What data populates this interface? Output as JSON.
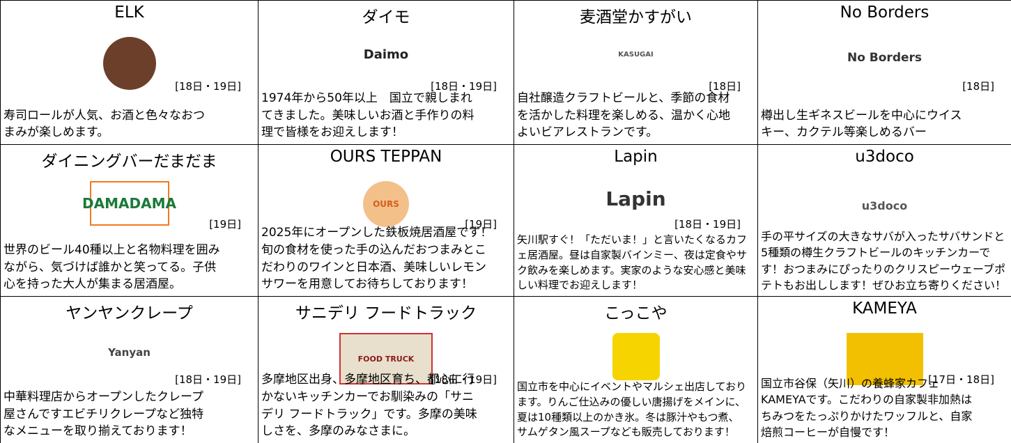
{
  "shops": [
    {
      "name": "ELK",
      "date": "[18日・19日]",
      "description": [
        "寿司ロールが人気、お酒と色々なおつ",
        "まみが楽しめます。"
      ]
    },
    {
      "name": "ダイモ",
      "date": "[18日・19日]",
      "logo_text": "Daimo",
      "description": [
        "1974年から50年以上　国立で親しまれ",
        "てきました。美味しいお酒と手作りの料",
        "理で皆様をお迎えします！"
      ]
    },
    {
      "name": "麦酒堂かすがい",
      "date": "[18日]",
      "logo_text": "KASUGAI",
      "description": [
        "自社醸造クラフトビールと、季節の食材",
        "を活かした料理を楽しめる、温かく心地",
        "よいビアレストランです。"
      ]
    },
    {
      "name": "No Borders",
      "date": "[18日]",
      "logo_text": "No Borders",
      "description": [
        "樽出し生ギネスビールを中心にウイス",
        "キー、カクテル等楽しめるバー"
      ]
    },
    {
      "name": "ダイニングバーだまだま",
      "date": "[19日]",
      "logo_text": "DAMADAMA",
      "description": [
        "世界のビール40種以上と名物料理を囲み",
        "ながら、気づけば誰かと笑ってる。子供",
        "心を持った大人が集まる居酒屋。"
      ]
    },
    {
      "name": "OURS TEPPAN",
      "date": "[19日]",
      "logo_text": "OURS",
      "description": [
        "2025年にオープンした鉄板焼居酒屋です！",
        "旬の食材を使った手の込んだおつまみとこ",
        "だわりのワインと日本酒、美味しいレモン",
        "サワーを用意してお待ちしております！"
      ]
    },
    {
      "name": "Lapin",
      "date": "[18日・19日]",
      "logo_text": "Lapin",
      "description": [
        "矢川駅すぐ！「ただいま！」と言いたくなるカフ",
        "ェ居酒屋。昼は自家製バインミー、夜は定食やサ",
        "ク飲みを楽しめます。実家のような安心感と美味",
        "しい料理でお迎えします！"
      ]
    },
    {
      "name": "u3doco",
      "logo_text": "u3doco",
      "description": [
        "手の平サイズの大きなサバが入ったサバサンドと",
        "5種類の樽生クラフトビールのキッチンカーで",
        "す！おつまみにぴったりのクリスピーウェーブポ",
        "テトもお出しします！ぜひお立ち寄りください！"
      ]
    },
    {
      "name": "ヤンヤンクレープ",
      "date": "[18日・19日]",
      "logo_text": "Yanyan",
      "description": [
        "中華料理店からオープンしたクレープ",
        "屋さんですエビチリクレープなど独特",
        "なメニューを取り揃えております！"
      ]
    },
    {
      "name": "サニデリ フードトラック",
      "date": "[18日・19日]",
      "logo_text": "FOOD TRUCK",
      "description": [
        "多摩地区出身、多摩地区育ち、都心に行",
        "かないキッチンカーでお馴染みの「サニ",
        "デリ フードトラック」です。多摩の美味",
        "しさを、多摩のみなさまに。"
      ]
    },
    {
      "name": "こっこや",
      "date": null,
      "description": [
        "国立市を中心にイベントやマルシェ出店しており",
        "ます。りんご仕込みの優しい唐揚げをメインに、",
        "夏は10種類以上のかき氷。冬は豚汁やもつ煮、",
        "サムゲタン風スープなども販売しております！"
      ]
    },
    {
      "name": "KAMEYA",
      "date": "[17日・18日]",
      "description": [
        "国立市谷保（矢川）の養蜂家カフェ",
        "KAMEYAです。こだわりの自家製非加熱は",
        "ちみつをたっぷりかけたワッフルと、自家",
        "焙煎コーヒーが自慢です！"
      ]
    }
  ]
}
